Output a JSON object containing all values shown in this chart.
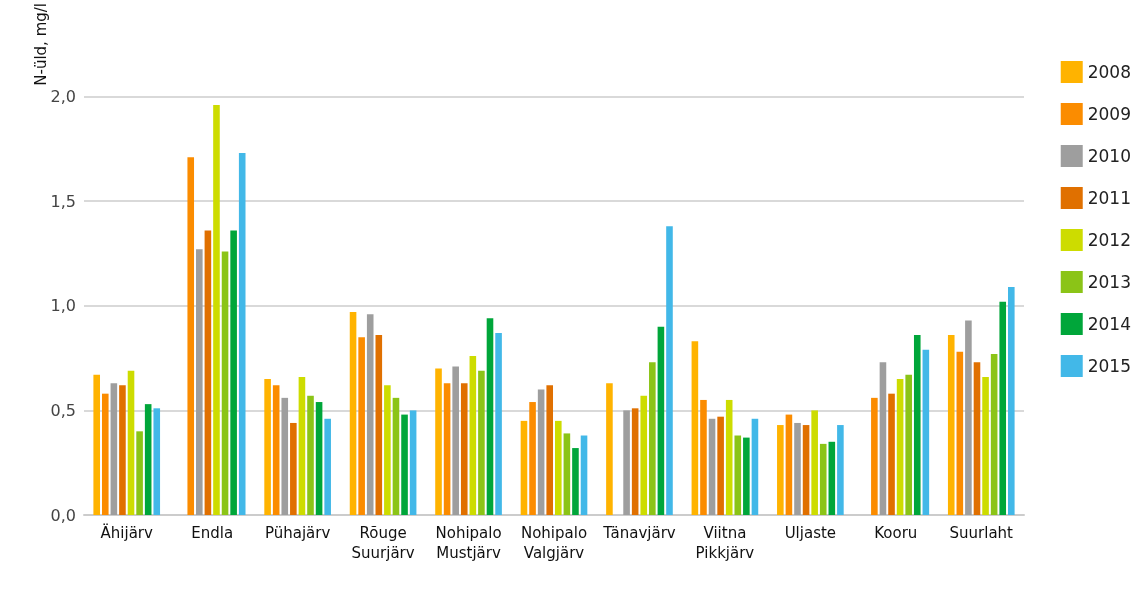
{
  "chart_data": {
    "type": "bar",
    "ylabel": "N-üld, mg/l",
    "categories": [
      "Ähijärv",
      "Endla",
      "Pühajärv",
      "Rõuge\nSuurjärv",
      "Nohipalo\nMustjärv",
      "Nohipalo\nValgjärv",
      "Tänavjärv",
      "Viitna\nPikkjärv",
      "Uljaste",
      "Kooru",
      "Suurlaht"
    ],
    "series": [
      {
        "name": "2008",
        "color": "#ffb300",
        "values": [
          0.67,
          null,
          0.65,
          0.97,
          0.7,
          0.45,
          0.63,
          0.83,
          0.43,
          null,
          0.86
        ]
      },
      {
        "name": "2009",
        "color": "#fb8c00",
        "values": [
          0.58,
          1.71,
          0.62,
          0.85,
          0.63,
          0.54,
          null,
          0.55,
          0.48,
          0.56,
          0.78
        ]
      },
      {
        "name": "2010",
        "color": "#9e9e9e",
        "values": [
          0.63,
          1.27,
          0.56,
          0.96,
          0.71,
          0.6,
          0.5,
          0.46,
          0.44,
          0.73,
          0.93
        ]
      },
      {
        "name": "2011",
        "color": "#e07000",
        "values": [
          0.62,
          1.36,
          0.44,
          0.86,
          0.63,
          0.62,
          0.51,
          0.47,
          0.43,
          0.58,
          0.73
        ]
      },
      {
        "name": "2012",
        "color": "#cddc00",
        "values": [
          0.69,
          1.96,
          0.66,
          0.62,
          0.76,
          0.45,
          0.57,
          0.55,
          0.5,
          0.65,
          0.66
        ]
      },
      {
        "name": "2013",
        "color": "#8bc417",
        "values": [
          0.4,
          1.26,
          0.57,
          0.56,
          0.69,
          0.39,
          0.73,
          0.38,
          0.34,
          0.67,
          0.77
        ]
      },
      {
        "name": "2014",
        "color": "#00a63a",
        "values": [
          0.53,
          1.36,
          0.54,
          0.48,
          0.94,
          0.32,
          0.9,
          0.37,
          0.35,
          0.86,
          1.02
        ]
      },
      {
        "name": "2015",
        "color": "#42b8e8",
        "values": [
          0.51,
          1.73,
          0.46,
          0.5,
          0.87,
          0.38,
          1.38,
          0.46,
          0.43,
          0.79,
          1.09
        ]
      }
    ],
    "ylim": [
      0,
      2.0
    ],
    "yticks": [
      {
        "value": 0,
        "label": "0,0"
      },
      {
        "value": 0.5,
        "label": "0,5"
      },
      {
        "value": 1,
        "label": "1,0"
      },
      {
        "value": 1.5,
        "label": "1,5"
      },
      {
        "value": 2,
        "label": "2,0"
      }
    ],
    "grid": "y",
    "legend": "right"
  }
}
